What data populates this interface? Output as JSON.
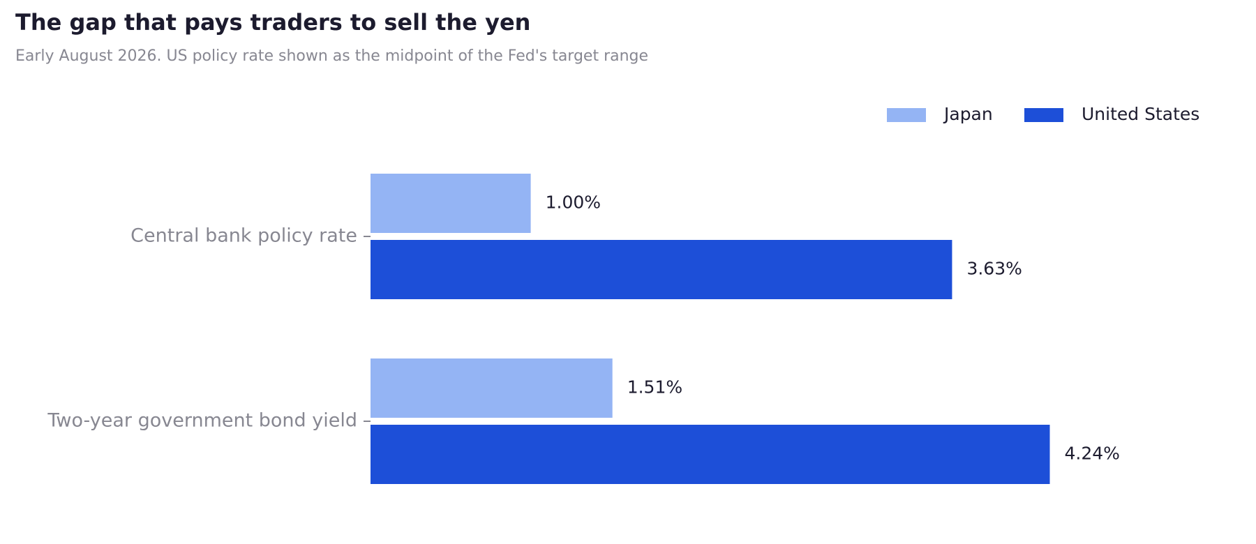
{
  "chart_data": {
    "type": "hbar",
    "title": "The gap that pays traders to sell the yen",
    "subtitle": "Early August 2026. US policy rate shown as the midpoint of the Fed's target range",
    "categories": [
      "Central bank policy rate",
      "Two-year government bond yield"
    ],
    "series": [
      {
        "name": "Japan",
        "color": "#94b4f4",
        "values": [
          1.0,
          1.51
        ],
        "value_labels": [
          "1.00%",
          "1.51%"
        ]
      },
      {
        "name": "United States",
        "color": "#1d4fd8",
        "values": [
          3.63,
          4.24
        ],
        "value_labels": [
          "3.63%",
          "4.24%"
        ]
      }
    ],
    "legend": "top-right"
  }
}
